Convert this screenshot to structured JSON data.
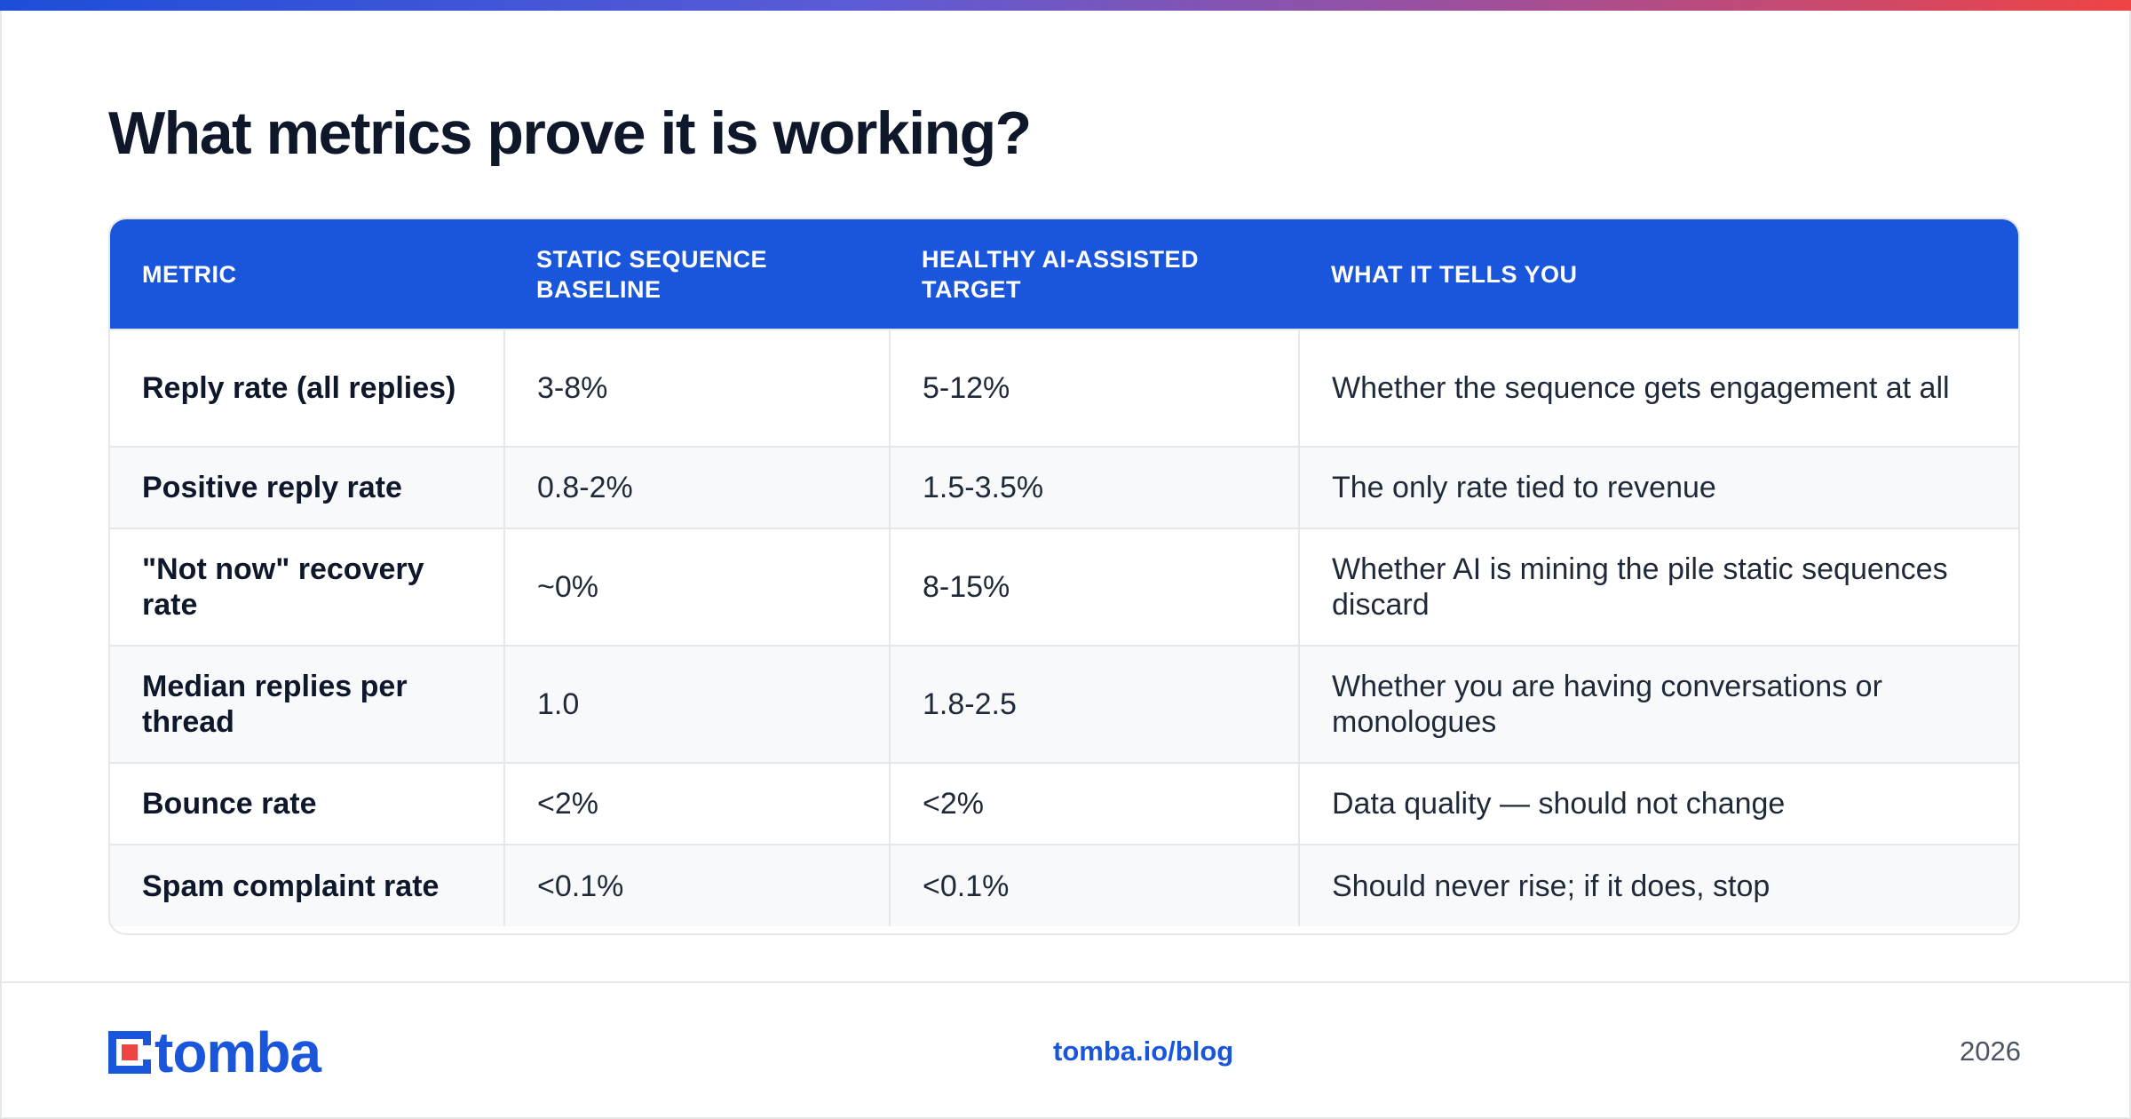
{
  "title": "What metrics prove it is working?",
  "table": {
    "headers": [
      "METRIC",
      "STATIC SEQUENCE BASELINE",
      "HEALTHY AI-ASSISTED TARGET",
      "WHAT IT TELLS YOU"
    ],
    "rows": [
      [
        "Reply rate (all replies)",
        "3-8%",
        "5-12%",
        "Whether the sequence gets engagement at all"
      ],
      [
        "Positive reply rate",
        "0.8-2%",
        "1.5-3.5%",
        "The only rate tied to revenue"
      ],
      [
        "\"Not now\" recovery rate",
        "~0%",
        "8-15%",
        "Whether AI is mining the pile static sequences discard"
      ],
      [
        "Median replies per thread",
        "1.0",
        "1.8-2.5",
        "Whether you are having conversations or monologues"
      ],
      [
        "Bounce rate",
        "<2%",
        "<2%",
        "Data quality — should not change"
      ],
      [
        "Spam complaint rate",
        "<0.1%",
        "<0.1%",
        "Should never rise; if it does, stop"
      ]
    ]
  },
  "footer": {
    "logo_text": "tomba",
    "link": "tomba.io/blog",
    "year": "2026"
  },
  "colors": {
    "header_bg": "#1a56db",
    "brand": "#1a56db",
    "accent_red": "#ef4444"
  }
}
